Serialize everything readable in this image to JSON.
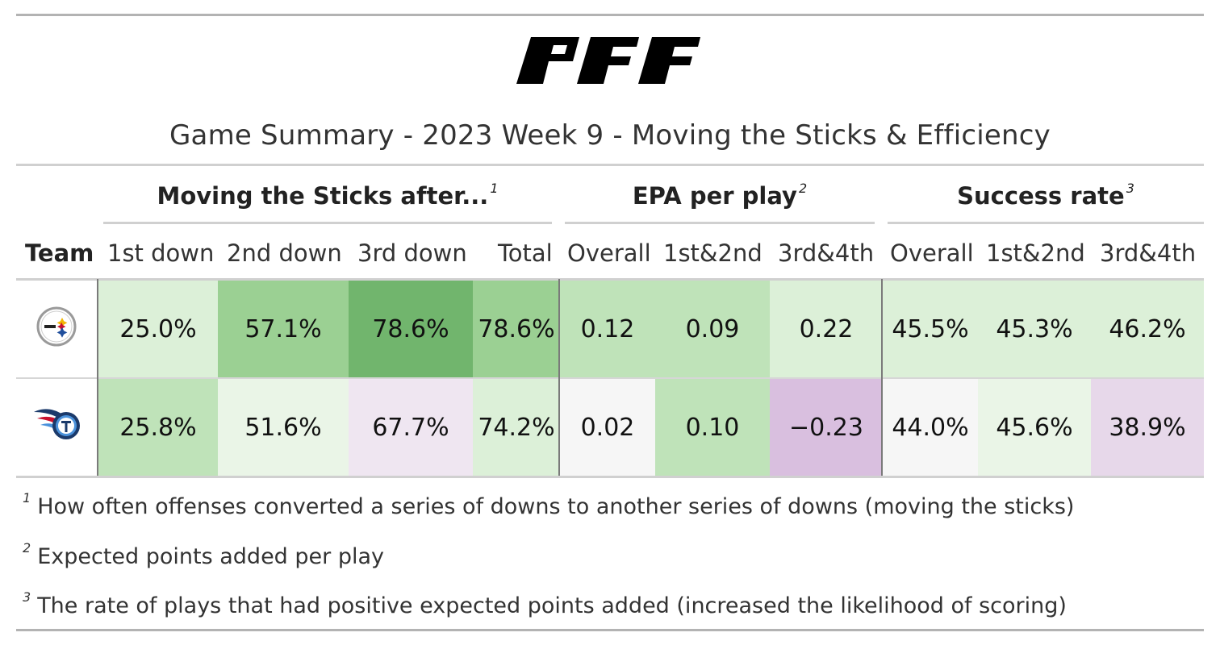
{
  "logo": {
    "icon": "pff-logo",
    "text": "PFF"
  },
  "title": "Game Summary - 2023 Week 9 - Moving the Sticks & Efficiency",
  "spanners": [
    {
      "label": "Moving the Sticks after...",
      "note": "1"
    },
    {
      "label": "EPA per play",
      "note": "2"
    },
    {
      "label": "Success rate",
      "note": "3"
    }
  ],
  "columns": [
    "Team",
    "1st down",
    "2nd down",
    "3rd down",
    "Total",
    "Overall",
    "1st&2nd",
    "3rd&4th",
    "Overall",
    "1st&2nd",
    "3rd&4th"
  ],
  "teams": [
    {
      "icon": "steelers-logo-icon"
    },
    {
      "icon": "titans-logo-icon"
    }
  ],
  "colors": {
    "green_light": "#dcf0d8",
    "green_mid": "#bfe3b9",
    "green_strong": "#9bd093",
    "green_dark": "#71b56d",
    "green_pale": "#eaf5e7",
    "neutral": "#f6f6f6",
    "purple_pale": "#efe6f1",
    "purple_light": "#e7d8ea",
    "purple_mid": "#d9bfdf"
  },
  "chart_data": {
    "type": "table",
    "title": "Game Summary - 2023 Week 9 - Moving the Sticks & Efficiency",
    "groups": [
      {
        "name": "Moving the Sticks after...",
        "columns": [
          "1st down",
          "2nd down",
          "3rd down",
          "Total"
        ]
      },
      {
        "name": "EPA per play",
        "columns": [
          "Overall",
          "1st&2nd",
          "3rd&4th"
        ]
      },
      {
        "name": "Success rate",
        "columns": [
          "Overall",
          "1st&2nd",
          "3rd&4th"
        ]
      }
    ],
    "rows": [
      {
        "team_icon": "steelers-logo-icon",
        "values": [
          "25.0%",
          "57.1%",
          "78.6%",
          "78.6%",
          "0.12",
          "0.09",
          "0.22",
          "45.5%",
          "45.3%",
          "46.2%"
        ],
        "fills": [
          "green_light",
          "green_strong",
          "green_dark",
          "green_strong",
          "green_mid",
          "green_mid",
          "green_light",
          "green_light",
          "green_light",
          "green_light"
        ]
      },
      {
        "team_icon": "titans-logo-icon",
        "values": [
          "25.8%",
          "51.6%",
          "67.7%",
          "74.2%",
          "0.02",
          "0.10",
          "−0.23",
          "44.0%",
          "45.6%",
          "38.9%"
        ],
        "fills": [
          "green_mid",
          "green_pale",
          "purple_pale",
          "green_light",
          "neutral",
          "green_mid",
          "purple_mid",
          "neutral",
          "green_pale",
          "purple_light"
        ]
      }
    ]
  },
  "footnotes": [
    {
      "mark": "1",
      "text": "How often offenses converted a series of downs to another series of downs (moving the sticks)"
    },
    {
      "mark": "2",
      "text": "Expected points added per play"
    },
    {
      "mark": "3",
      "text": "The rate of plays that had positive expected points added (increased the likelihood of scoring)"
    }
  ]
}
